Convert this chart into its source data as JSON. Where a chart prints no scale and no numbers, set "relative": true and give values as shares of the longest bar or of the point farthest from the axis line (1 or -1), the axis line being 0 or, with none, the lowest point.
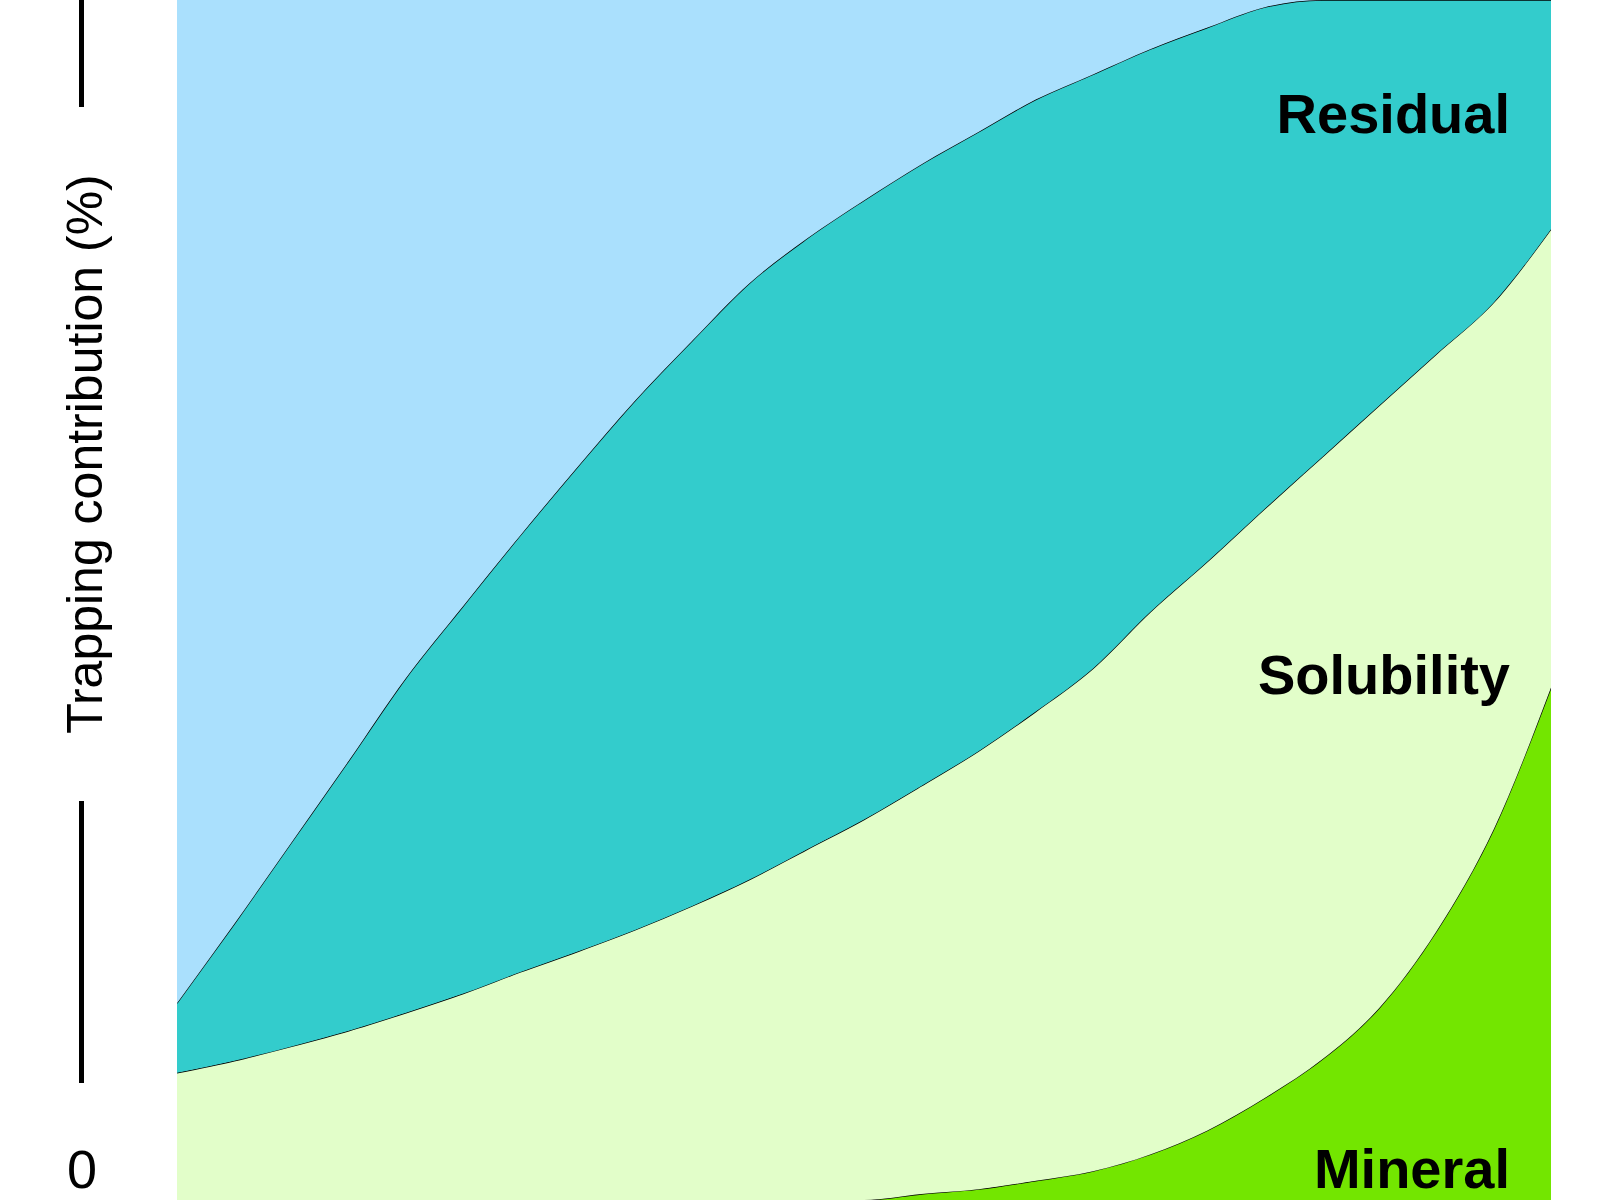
{
  "chart_data": {
    "type": "area",
    "relative": true,
    "stacked": true,
    "ylabel": "Trapping contribution (%)",
    "annotations": [
      "0"
    ],
    "categories": [
      null,
      null,
      null,
      null,
      null,
      null,
      null,
      null,
      null,
      null,
      null,
      null,
      null,
      null,
      null,
      null,
      null,
      null,
      null,
      null,
      null,
      null,
      null,
      null,
      null
    ],
    "series": [
      {
        "name": "Mineral",
        "color": "#73e600",
        "values": [
          0,
          0,
          0,
          0,
          0,
          0,
          0,
          0,
          0,
          0,
          0,
          0,
          0,
          0.005,
          0.009,
          0.016,
          0.024,
          0.038,
          0.058,
          0.085,
          0.117,
          0.16,
          0.224,
          0.309,
          0.427
        ]
      },
      {
        "name": "Solubility",
        "color": "#e2fec9",
        "values": [
          0.106,
          0.116,
          0.128,
          0.141,
          0.156,
          0.172,
          0.19,
          0.207,
          0.225,
          0.245,
          0.267,
          0.292,
          0.317,
          0.34,
          0.365,
          0.391,
          0.419,
          0.452,
          0.474,
          0.491,
          0.502,
          0.502,
          0.481,
          0.439,
          0.382
        ]
      },
      {
        "name": "Residual",
        "color": "#33cccc",
        "values": [
          0.058,
          0.114,
          0.17,
          0.225,
          0.279,
          0.323,
          0.364,
          0.404,
          0.441,
          0.471,
          0.497,
          0.509,
          0.516,
          0.518,
          0.516,
          0.51,
          0.495,
          0.469,
          0.445,
          0.418,
          0.381,
          0.338,
          0.295,
          0.252,
          0.191
        ]
      },
      {
        "color": "#aae0fd",
        "values": [
          0.836,
          0.77,
          0.702,
          0.634,
          0.565,
          0.505,
          0.446,
          0.389,
          0.334,
          0.284,
          0.236,
          0.199,
          0.167,
          0.137,
          0.11,
          0.083,
          0.062,
          0.041,
          0.023,
          0.006,
          0,
          0,
          0,
          0,
          0
        ]
      }
    ]
  }
}
